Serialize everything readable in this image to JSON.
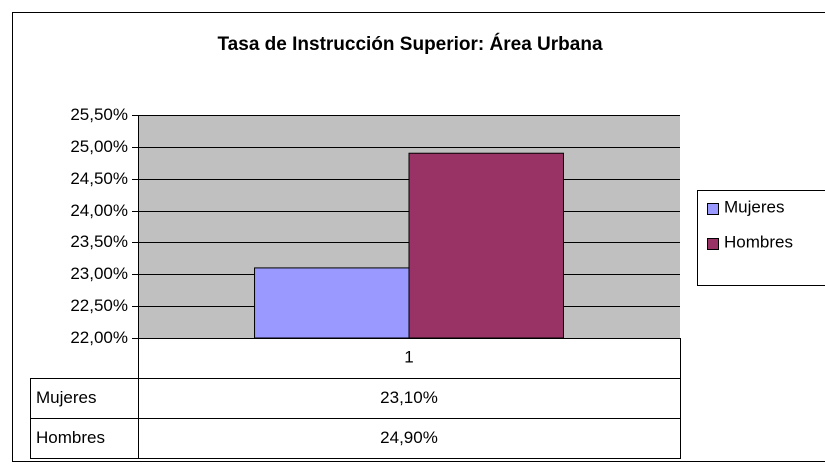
{
  "chart_data": {
    "type": "bar",
    "title": "Tasa de Instrucción Superior: Área Urbana",
    "categories": [
      "1"
    ],
    "series": [
      {
        "name": "Mujeres",
        "color": "#9999ff",
        "values": [
          23.1
        ],
        "value_labels": [
          "23,10%"
        ]
      },
      {
        "name": "Hombres",
        "color": "#993366",
        "values": [
          24.9
        ],
        "value_labels": [
          "24,90%"
        ]
      }
    ],
    "ylim": [
      22,
      25.5
    ],
    "yticks": [
      {
        "value": 22,
        "label": "22,00%"
      },
      {
        "value": 22.5,
        "label": "22,50%"
      },
      {
        "value": 23,
        "label": "23,00%"
      },
      {
        "value": 23.5,
        "label": "23,50%"
      },
      {
        "value": 24,
        "label": "24,00%"
      },
      {
        "value": 24.5,
        "label": "24,50%"
      },
      {
        "value": 25,
        "label": "25,00%"
      },
      {
        "value": 25.5,
        "label": "25,50%"
      }
    ],
    "grid": true,
    "legend": "right",
    "plot_background": "#c0c0c0"
  }
}
